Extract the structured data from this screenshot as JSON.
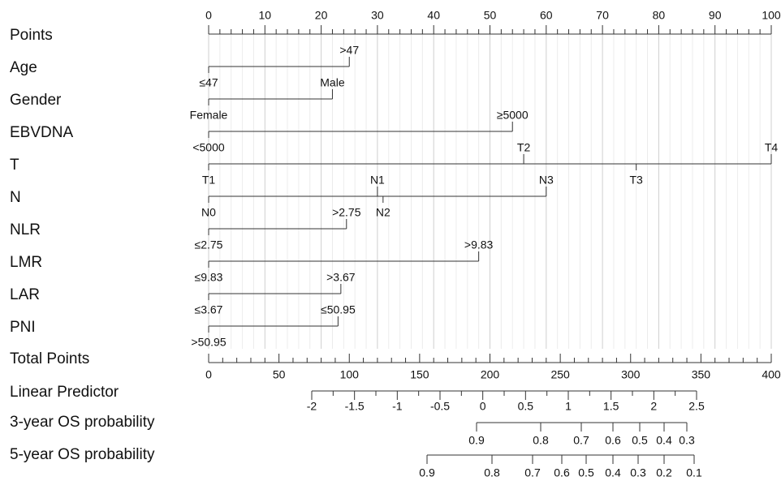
{
  "chart_data": {
    "type": "nomogram",
    "grid": true,
    "points_axis": {
      "label": "Points",
      "xlim": [
        0,
        100
      ],
      "xticks": [
        0,
        10,
        20,
        30,
        40,
        50,
        60,
        70,
        80,
        90,
        100
      ],
      "minor_ticks": [
        2,
        4,
        6,
        8,
        12,
        14,
        16,
        18,
        22,
        24,
        26,
        28,
        32,
        34,
        36,
        38,
        42,
        44,
        46,
        48,
        52,
        54,
        56,
        58,
        62,
        64,
        66,
        68,
        72,
        74,
        76,
        78,
        82,
        84,
        86,
        88,
        92,
        94,
        96,
        98
      ]
    },
    "variables": [
      {
        "name": "Age",
        "levels": [
          {
            "label": "≤47",
            "points": 0
          },
          {
            "label": ">47",
            "points": 25
          }
        ]
      },
      {
        "name": "Gender",
        "levels": [
          {
            "label": "Female",
            "points": 0
          },
          {
            "label": "Male",
            "points": 22
          }
        ]
      },
      {
        "name": "EBVDNA",
        "levels": [
          {
            "label": "<5000",
            "points": 0
          },
          {
            "label": "≥5000",
            "points": 54
          }
        ]
      },
      {
        "name": "T",
        "levels": [
          {
            "label": "T1",
            "points": 0
          },
          {
            "label": "T2",
            "points": 56
          },
          {
            "label": "T3",
            "points": 76
          },
          {
            "label": "T4",
            "points": 100
          }
        ]
      },
      {
        "name": "N",
        "levels": [
          {
            "label": "N0",
            "points": 0
          },
          {
            "label": "N1",
            "points": 30
          },
          {
            "label": "N2",
            "points": 31
          },
          {
            "label": "N3",
            "points": 60
          }
        ]
      },
      {
        "name": "NLR",
        "levels": [
          {
            "label": "≤2.75",
            "points": 0
          },
          {
            "label": ">2.75",
            "points": 24.5
          }
        ]
      },
      {
        "name": "LMR",
        "levels": [
          {
            "label": "≤9.83",
            "points": 0
          },
          {
            "label": ">9.83",
            "points": 48
          }
        ]
      },
      {
        "name": "LAR",
        "levels": [
          {
            "label": "≤3.67",
            "points": 0
          },
          {
            "label": ">3.67",
            "points": 23.5
          }
        ]
      },
      {
        "name": "PNI",
        "levels": [
          {
            "label": ">50.95",
            "points": 0
          },
          {
            "label": "≤50.95",
            "points": 23
          }
        ]
      }
    ],
    "total_points_axis": {
      "label": "Total Points",
      "xlim": [
        0,
        400
      ],
      "xticks": [
        0,
        50,
        100,
        150,
        200,
        250,
        300,
        350,
        400
      ],
      "minor_ticks": [
        10,
        20,
        30,
        40,
        60,
        70,
        80,
        90,
        110,
        120,
        130,
        140,
        160,
        170,
        180,
        190,
        210,
        220,
        230,
        240,
        260,
        270,
        280,
        290,
        310,
        320,
        330,
        340,
        360,
        370,
        380,
        390
      ]
    },
    "linear_predictor_axis": {
      "label": "Linear Predictor",
      "xlim": [
        -2,
        2.5
      ],
      "xticks": [
        -2,
        -1.5,
        -1,
        -0.5,
        0,
        0.5,
        1,
        1.5,
        2,
        2.5
      ],
      "minor_ticks": [
        -1.75,
        -1.25,
        -0.75,
        -0.25,
        0.25,
        0.75,
        1.25,
        1.75,
        2.25
      ]
    },
    "probability_axes": [
      {
        "label": "3-year OS probability",
        "xticks": [
          0.9,
          0.8,
          0.7,
          0.6,
          0.5,
          0.4,
          0.3
        ]
      },
      {
        "label": "5-year OS probability",
        "xticks": [
          0.9,
          0.8,
          0.7,
          0.6,
          0.5,
          0.4,
          0.3,
          0.2,
          0.1
        ]
      }
    ]
  }
}
